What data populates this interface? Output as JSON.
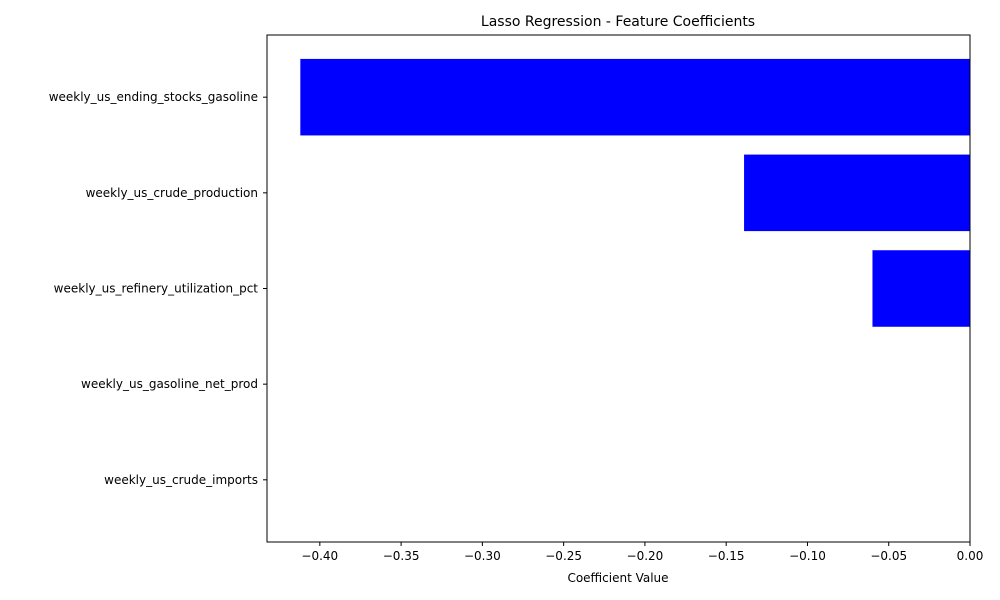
{
  "chart_data": {
    "type": "bar",
    "orientation": "horizontal",
    "title": "Lasso Regression - Feature Coefficients",
    "xlabel": "Coefficient Value",
    "ylabel": "",
    "categories": [
      "weekly_us_ending_stocks_gasoline",
      "weekly_us_crude_production",
      "weekly_us_refinery_utilization_pct",
      "weekly_us_gasoline_net_prod",
      "weekly_us_crude_imports"
    ],
    "values": [
      -0.412,
      -0.139,
      -0.06,
      0.0,
      0.0
    ],
    "xlim": [
      -0.4325,
      0.0
    ],
    "xticks": [
      -0.4,
      -0.35,
      -0.3,
      -0.25,
      -0.2,
      -0.15,
      -0.1,
      -0.05,
      0.0
    ],
    "xtick_labels": [
      "−0.40",
      "−0.35",
      "−0.30",
      "−0.25",
      "−0.20",
      "−0.15",
      "−0.10",
      "−0.05",
      "0.00"
    ],
    "bar_color": "#0000ff",
    "grid": false,
    "legend": "none"
  }
}
